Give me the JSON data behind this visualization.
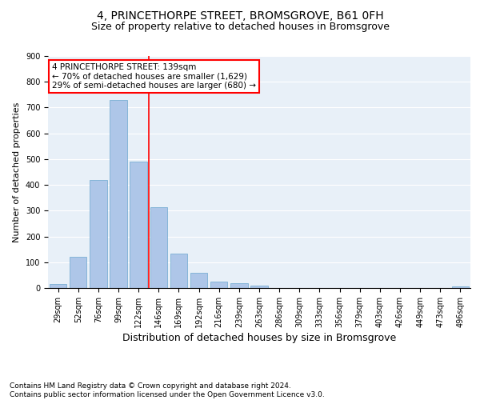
{
  "title": "4, PRINCETHORPE STREET, BROMSGROVE, B61 0FH",
  "subtitle": "Size of property relative to detached houses in Bromsgrove",
  "xlabel": "Distribution of detached houses by size in Bromsgrove",
  "ylabel": "Number of detached properties",
  "categories": [
    "29sqm",
    "52sqm",
    "76sqm",
    "99sqm",
    "122sqm",
    "146sqm",
    "169sqm",
    "192sqm",
    "216sqm",
    "239sqm",
    "263sqm",
    "286sqm",
    "309sqm",
    "333sqm",
    "356sqm",
    "379sqm",
    "403sqm",
    "426sqm",
    "449sqm",
    "473sqm",
    "496sqm"
  ],
  "values": [
    15,
    120,
    420,
    730,
    490,
    315,
    135,
    60,
    25,
    20,
    10,
    0,
    0,
    0,
    0,
    0,
    0,
    0,
    0,
    0,
    5
  ],
  "bar_color": "#aec6e8",
  "bar_edge_color": "#7bafd4",
  "vline_x": 4.5,
  "vline_color": "red",
  "annotation_text": "4 PRINCETHORPE STREET: 139sqm\n← 70% of detached houses are smaller (1,629)\n29% of semi-detached houses are larger (680) →",
  "annotation_box_color": "white",
  "annotation_box_edge": "red",
  "ylim": [
    0,
    900
  ],
  "yticks": [
    0,
    100,
    200,
    300,
    400,
    500,
    600,
    700,
    800,
    900
  ],
  "bg_color": "#e8f0f8",
  "footer": "Contains HM Land Registry data © Crown copyright and database right 2024.\nContains public sector information licensed under the Open Government Licence v3.0.",
  "title_fontsize": 10,
  "subtitle_fontsize": 9,
  "xlabel_fontsize": 9,
  "ylabel_fontsize": 8,
  "tick_fontsize": 7,
  "annotation_fontsize": 7.5,
  "footer_fontsize": 6.5
}
